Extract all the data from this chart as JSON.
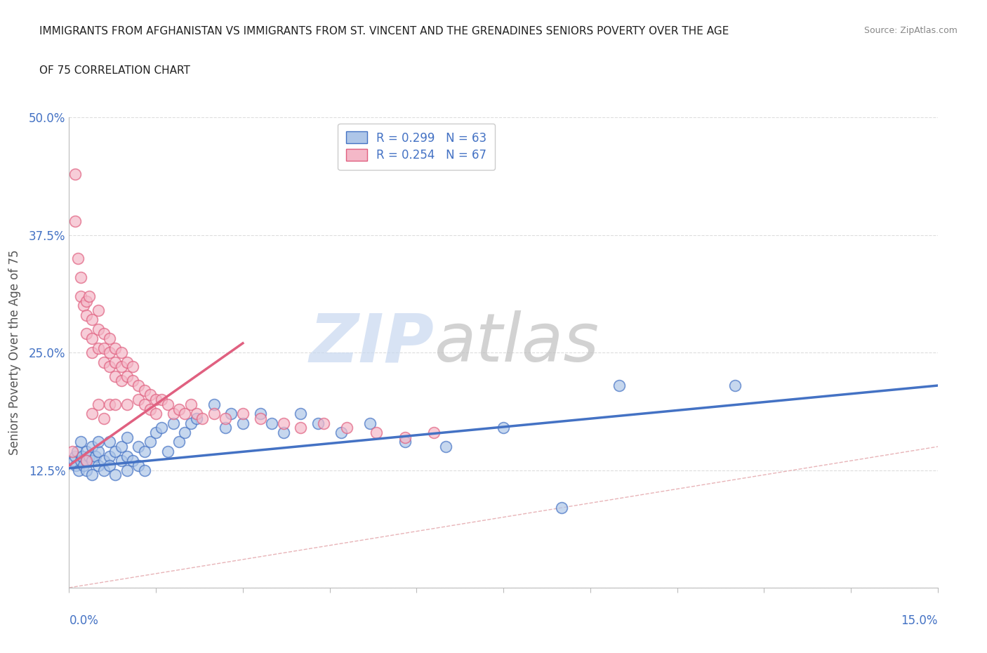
{
  "title_line1": "IMMIGRANTS FROM AFGHANISTAN VS IMMIGRANTS FROM ST. VINCENT AND THE GRENADINES SENIORS POVERTY OVER THE AGE",
  "title_line2": "OF 75 CORRELATION CHART",
  "source": "Source: ZipAtlas.com",
  "ylabel": "Seniors Poverty Over the Age of 75",
  "xlim": [
    0.0,
    0.15
  ],
  "ylim": [
    0.0,
    0.5
  ],
  "xticks": [
    0.0,
    0.015,
    0.03,
    0.045,
    0.06,
    0.075,
    0.09,
    0.105,
    0.12,
    0.135,
    0.15
  ],
  "xticklabels_show": [
    "0.0%",
    "",
    "",
    "",
    "",
    "",
    "",
    "",
    "",
    "",
    "15.0%"
  ],
  "yticks": [
    0.0,
    0.125,
    0.25,
    0.375,
    0.5
  ],
  "yticklabels": [
    "",
    "12.5%",
    "25.0%",
    "37.5%",
    "50.0%"
  ],
  "legend1_label": "R = 0.299   N = 63",
  "legend2_label": "R = 0.254   N = 67",
  "color_blue": "#aec6e8",
  "color_pink": "#f4b8c8",
  "line_blue": "#4472c4",
  "line_pink": "#e06080",
  "diagonal_color": "#e8b4b8",
  "watermark_zip": "ZIP",
  "watermark_atlas": "atlas",
  "R_blue": 0.299,
  "N_blue": 63,
  "R_pink": 0.254,
  "N_pink": 67,
  "blue_x": [
    0.0008,
    0.001,
    0.0012,
    0.0014,
    0.0016,
    0.002,
    0.002,
    0.0022,
    0.0025,
    0.003,
    0.003,
    0.003,
    0.0035,
    0.004,
    0.004,
    0.004,
    0.0045,
    0.005,
    0.005,
    0.005,
    0.006,
    0.006,
    0.007,
    0.007,
    0.007,
    0.008,
    0.008,
    0.009,
    0.009,
    0.01,
    0.01,
    0.01,
    0.011,
    0.012,
    0.012,
    0.013,
    0.013,
    0.014,
    0.015,
    0.016,
    0.017,
    0.018,
    0.019,
    0.02,
    0.021,
    0.022,
    0.025,
    0.027,
    0.028,
    0.03,
    0.033,
    0.035,
    0.037,
    0.04,
    0.043,
    0.047,
    0.052,
    0.058,
    0.065,
    0.075,
    0.085,
    0.095,
    0.115
  ],
  "blue_y": [
    0.135,
    0.14,
    0.13,
    0.145,
    0.125,
    0.135,
    0.155,
    0.14,
    0.13,
    0.145,
    0.135,
    0.125,
    0.14,
    0.15,
    0.135,
    0.12,
    0.14,
    0.145,
    0.13,
    0.155,
    0.135,
    0.125,
    0.14,
    0.155,
    0.13,
    0.145,
    0.12,
    0.135,
    0.15,
    0.14,
    0.125,
    0.16,
    0.135,
    0.15,
    0.13,
    0.145,
    0.125,
    0.155,
    0.165,
    0.17,
    0.145,
    0.175,
    0.155,
    0.165,
    0.175,
    0.18,
    0.195,
    0.17,
    0.185,
    0.175,
    0.185,
    0.175,
    0.165,
    0.185,
    0.175,
    0.165,
    0.175,
    0.155,
    0.15,
    0.17,
    0.085,
    0.215,
    0.215
  ],
  "pink_x": [
    0.0005,
    0.001,
    0.001,
    0.0015,
    0.002,
    0.002,
    0.0025,
    0.003,
    0.003,
    0.003,
    0.0035,
    0.004,
    0.004,
    0.004,
    0.005,
    0.005,
    0.005,
    0.006,
    0.006,
    0.006,
    0.007,
    0.007,
    0.007,
    0.008,
    0.008,
    0.008,
    0.009,
    0.009,
    0.009,
    0.01,
    0.01,
    0.011,
    0.011,
    0.012,
    0.012,
    0.013,
    0.013,
    0.014,
    0.014,
    0.015,
    0.015,
    0.016,
    0.017,
    0.018,
    0.019,
    0.02,
    0.021,
    0.022,
    0.023,
    0.025,
    0.027,
    0.03,
    0.033,
    0.037,
    0.04,
    0.044,
    0.048,
    0.053,
    0.058,
    0.063,
    0.003,
    0.004,
    0.005,
    0.006,
    0.007,
    0.008,
    0.01
  ],
  "pink_y": [
    0.145,
    0.44,
    0.39,
    0.35,
    0.33,
    0.31,
    0.3,
    0.305,
    0.29,
    0.27,
    0.31,
    0.285,
    0.265,
    0.25,
    0.295,
    0.275,
    0.255,
    0.27,
    0.255,
    0.24,
    0.265,
    0.25,
    0.235,
    0.255,
    0.24,
    0.225,
    0.25,
    0.235,
    0.22,
    0.24,
    0.225,
    0.235,
    0.22,
    0.215,
    0.2,
    0.21,
    0.195,
    0.205,
    0.19,
    0.2,
    0.185,
    0.2,
    0.195,
    0.185,
    0.19,
    0.185,
    0.195,
    0.185,
    0.18,
    0.185,
    0.18,
    0.185,
    0.18,
    0.175,
    0.17,
    0.175,
    0.17,
    0.165,
    0.16,
    0.165,
    0.135,
    0.185,
    0.195,
    0.18,
    0.195,
    0.195,
    0.195
  ],
  "blue_trend_x": [
    0.0,
    0.15
  ],
  "blue_trend_y": [
    0.127,
    0.215
  ],
  "pink_trend_x": [
    0.0,
    0.03
  ],
  "pink_trend_y": [
    0.13,
    0.26
  ],
  "background_color": "#ffffff",
  "grid_color": "#dddddd",
  "title_color": "#222222",
  "source_color": "#888888",
  "ylabel_color": "#555555",
  "ytick_color": "#4472c4",
  "xtick_color": "#4472c4"
}
